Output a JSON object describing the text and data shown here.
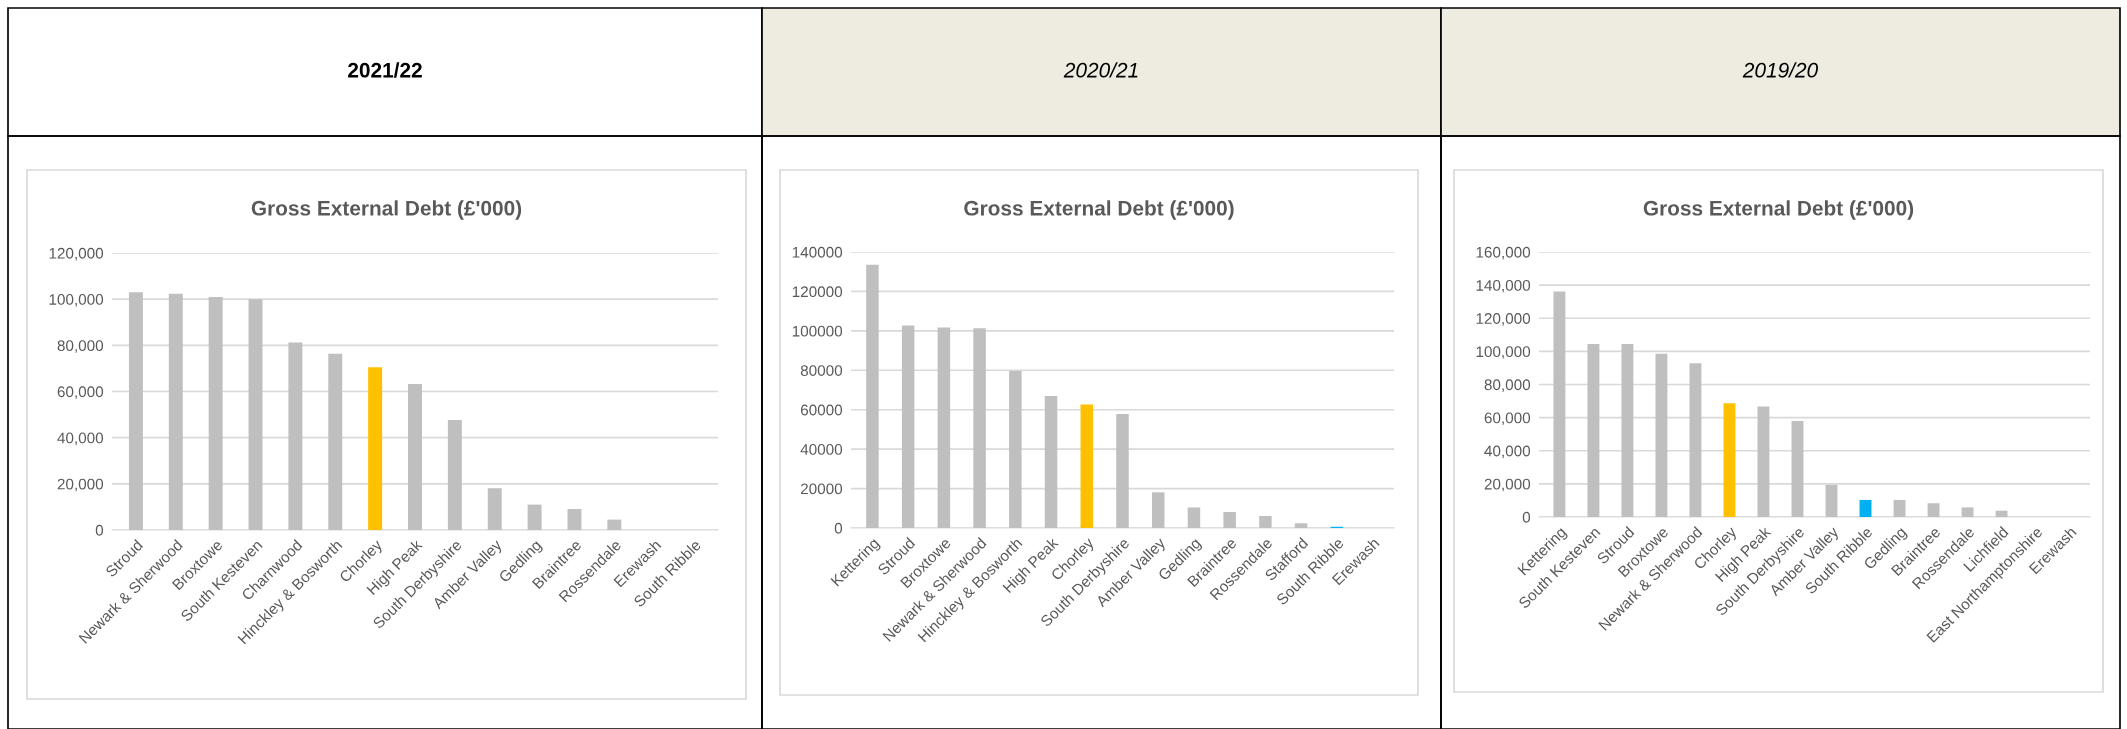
{
  "chart_data": [
    {
      "type": "bar",
      "subtitle": "2021/22",
      "title": "Gross External Debt (£'000)",
      "categories": [
        "Stroud",
        "Newark & Sherwood",
        "Broxtowe",
        "South Kesteven",
        "Charnwood",
        "Hinckley & Bosworth",
        "Chorley",
        "High Peak",
        "South Derbyshire",
        "Amber Valley",
        "Gedling",
        "Braintree",
        "Rossendale",
        "Erewash",
        "South Ribble"
      ],
      "values": [
        103000,
        102300,
        100900,
        100000,
        81200,
        76300,
        70500,
        63300,
        47700,
        18100,
        11000,
        9100,
        4500,
        0,
        0
      ],
      "colors": [
        "#bfbfbf",
        "#bfbfbf",
        "#bfbfbf",
        "#bfbfbf",
        "#bfbfbf",
        "#bfbfbf",
        "#ffc000",
        "#bfbfbf",
        "#bfbfbf",
        "#bfbfbf",
        "#bfbfbf",
        "#bfbfbf",
        "#bfbfbf",
        "#bfbfbf",
        "#bfbfbf"
      ],
      "ylim": [
        0,
        120000
      ],
      "yticks": [
        0,
        {
          "value": 20000,
          "label": "20,000"
        },
        {
          "value": 40000,
          "label": "40,000"
        },
        {
          "value": 60000,
          "label": "60,000"
        },
        {
          "value": 80000,
          "label": "80,000"
        },
        {
          "value": 100000,
          "label": "100,000"
        },
        {
          "value": 120000,
          "label": "120,000"
        }
      ],
      "grid": "y"
    },
    {
      "type": "bar",
      "subtitle": "2020/21",
      "title": "Gross External Debt (£'000)",
      "categories": [
        "Kettering",
        "Stroud",
        "Broxtowe",
        "Newark & Sherwood",
        "Hinckley & Bosworth",
        "High Peak",
        "Chorley",
        "South Derbyshire",
        "Amber Valley",
        "Gedling",
        "Braintree",
        "Rossendale",
        "Stafford",
        "South Ribble",
        "Erewash"
      ],
      "values": [
        133500,
        102700,
        101700,
        101300,
        79700,
        66900,
        62700,
        57800,
        18100,
        10400,
        8100,
        6100,
        2400,
        600,
        0
      ],
      "colors": [
        "#bfbfbf",
        "#bfbfbf",
        "#bfbfbf",
        "#bfbfbf",
        "#bfbfbf",
        "#bfbfbf",
        "#ffc000",
        "#bfbfbf",
        "#bfbfbf",
        "#bfbfbf",
        "#bfbfbf",
        "#bfbfbf",
        "#bfbfbf",
        "#00b0f0",
        "#bfbfbf"
      ],
      "ylim": [
        0,
        140000
      ],
      "yticks": [
        0,
        20000,
        40000,
        60000,
        80000,
        100000,
        120000,
        140000
      ],
      "grid": "y"
    },
    {
      "type": "bar",
      "subtitle": "2019/20",
      "title": "Gross External Debt (£'000)",
      "categories": [
        "Kettering",
        "South Kesteven",
        "Stroud",
        "Broxtowe",
        "Newark & Sherwood",
        "Chorley",
        "High Peak",
        "South Derbyshire",
        "Amber Valley",
        "South Ribble",
        "Gedling",
        "Braintree",
        "Rossendale",
        "Lichfield",
        "East Northamptonshire",
        "Erewash"
      ],
      "values": [
        136100,
        104400,
        104400,
        98600,
        92800,
        68700,
        66700,
        57900,
        19400,
        10300,
        10300,
        8300,
        5800,
        3800,
        0,
        0
      ],
      "colors": [
        "#bfbfbf",
        "#bfbfbf",
        "#bfbfbf",
        "#bfbfbf",
        "#bfbfbf",
        "#ffc000",
        "#bfbfbf",
        "#bfbfbf",
        "#bfbfbf",
        "#00b0f0",
        "#bfbfbf",
        "#bfbfbf",
        "#bfbfbf",
        "#bfbfbf",
        "#bfbfbf",
        "#bfbfbf"
      ],
      "ylim": [
        0,
        160000
      ],
      "yticks": [
        0,
        {
          "value": 20000,
          "label": "20,000"
        },
        {
          "value": 40000,
          "label": "40,000"
        },
        {
          "value": 60000,
          "label": "60,000"
        },
        {
          "value": 80000,
          "label": "80,000"
        },
        {
          "value": 100000,
          "label": "100,000"
        },
        {
          "value": 120000,
          "label": "120,000"
        },
        {
          "value": 140000,
          "label": "140,000"
        },
        {
          "value": 160000,
          "label": "160,000"
        }
      ],
      "grid": "y"
    }
  ]
}
